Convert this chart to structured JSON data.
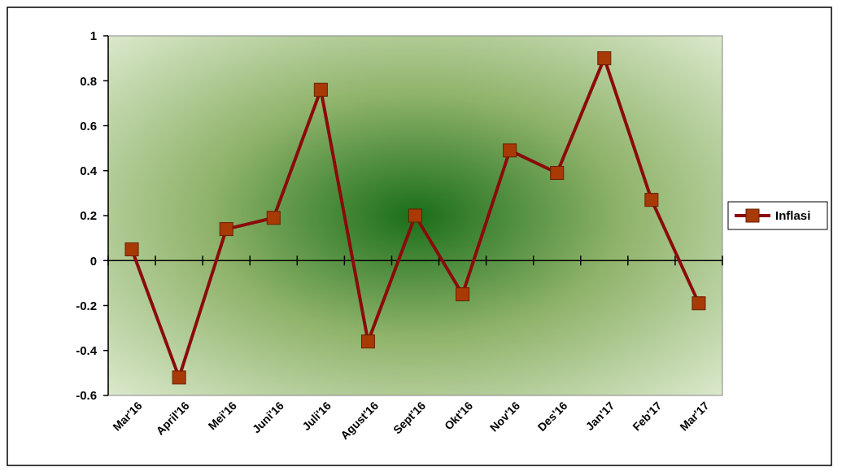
{
  "chart_data": {
    "type": "line",
    "categories": [
      "Mar'16",
      "April'16",
      "Mei'16",
      "Juni'16",
      "Juli'16",
      "Agust'16",
      "Sept'16",
      "Okt'16",
      "Nov'16",
      "Des'16",
      "Jan'17",
      "Feb'17",
      "Mar'17"
    ],
    "series": [
      {
        "name": "Inflasi",
        "color": "#8b0a0a",
        "values": [
          0.05,
          -0.52,
          0.14,
          0.19,
          0.76,
          -0.36,
          0.2,
          -0.15,
          0.49,
          0.39,
          0.9,
          0.27,
          -0.19
        ]
      }
    ],
    "ylim": [
      -0.6,
      1
    ],
    "yticks": [
      -0.6,
      -0.4,
      -0.2,
      0,
      0.2,
      0.4,
      0.6,
      0.8,
      1
    ],
    "legend": "right",
    "marker": "square",
    "line_style": "solid"
  }
}
